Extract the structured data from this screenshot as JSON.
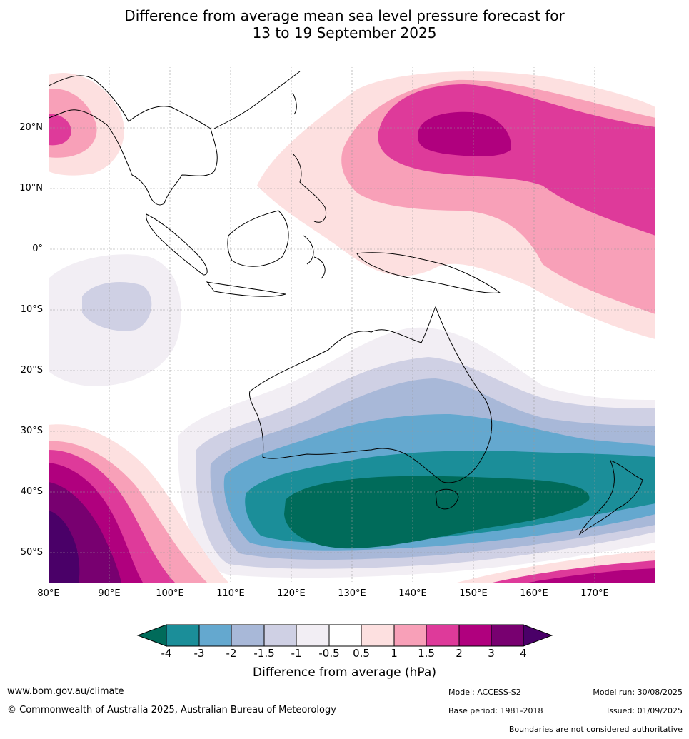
{
  "title": {
    "line1": "Difference from average mean sea level pressure forecast for",
    "line2": "13 to 19 September 2025"
  },
  "map": {
    "lat_ticks": [
      "20°N",
      "10°N",
      "0°",
      "10°S",
      "20°S",
      "30°S",
      "40°S",
      "50°S"
    ],
    "lon_ticks": [
      "80°E",
      "90°E",
      "100°E",
      "110°E",
      "120°E",
      "130°E",
      "140°E",
      "150°E",
      "160°E",
      "170°E"
    ],
    "extent": {
      "lon": [
        80,
        180
      ],
      "lat": [
        -55,
        30
      ]
    }
  },
  "colorbar": {
    "title": "Difference from average (hPa)",
    "labels": [
      "-4",
      "-3",
      "-2",
      "-1.5",
      "-1",
      "-0.5",
      "0.5",
      "1",
      "1.5",
      "2",
      "3",
      "4"
    ],
    "colors": [
      "#006b5a",
      "#1b8e99",
      "#64a8cf",
      "#a8b8d8",
      "#cfd0e4",
      "#f2eef4",
      "#ffffff",
      "#fde0e0",
      "#f8a0b8",
      "#de3a9a",
      "#b0007e",
      "#780070",
      "#4a0068"
    ]
  },
  "footer": {
    "url": "www.bom.gov.au/climate",
    "copyright": "© Commonwealth of Australia 2025, Australian Bureau of Meteorology",
    "model": "Model: ACCESS-S2",
    "base_period": "Base period: 1981-2018",
    "model_run": "Model run: 30/08/2025",
    "issued": "Issued: 01/09/2025",
    "disclaimer": "Boundaries are not considered authoritative"
  }
}
